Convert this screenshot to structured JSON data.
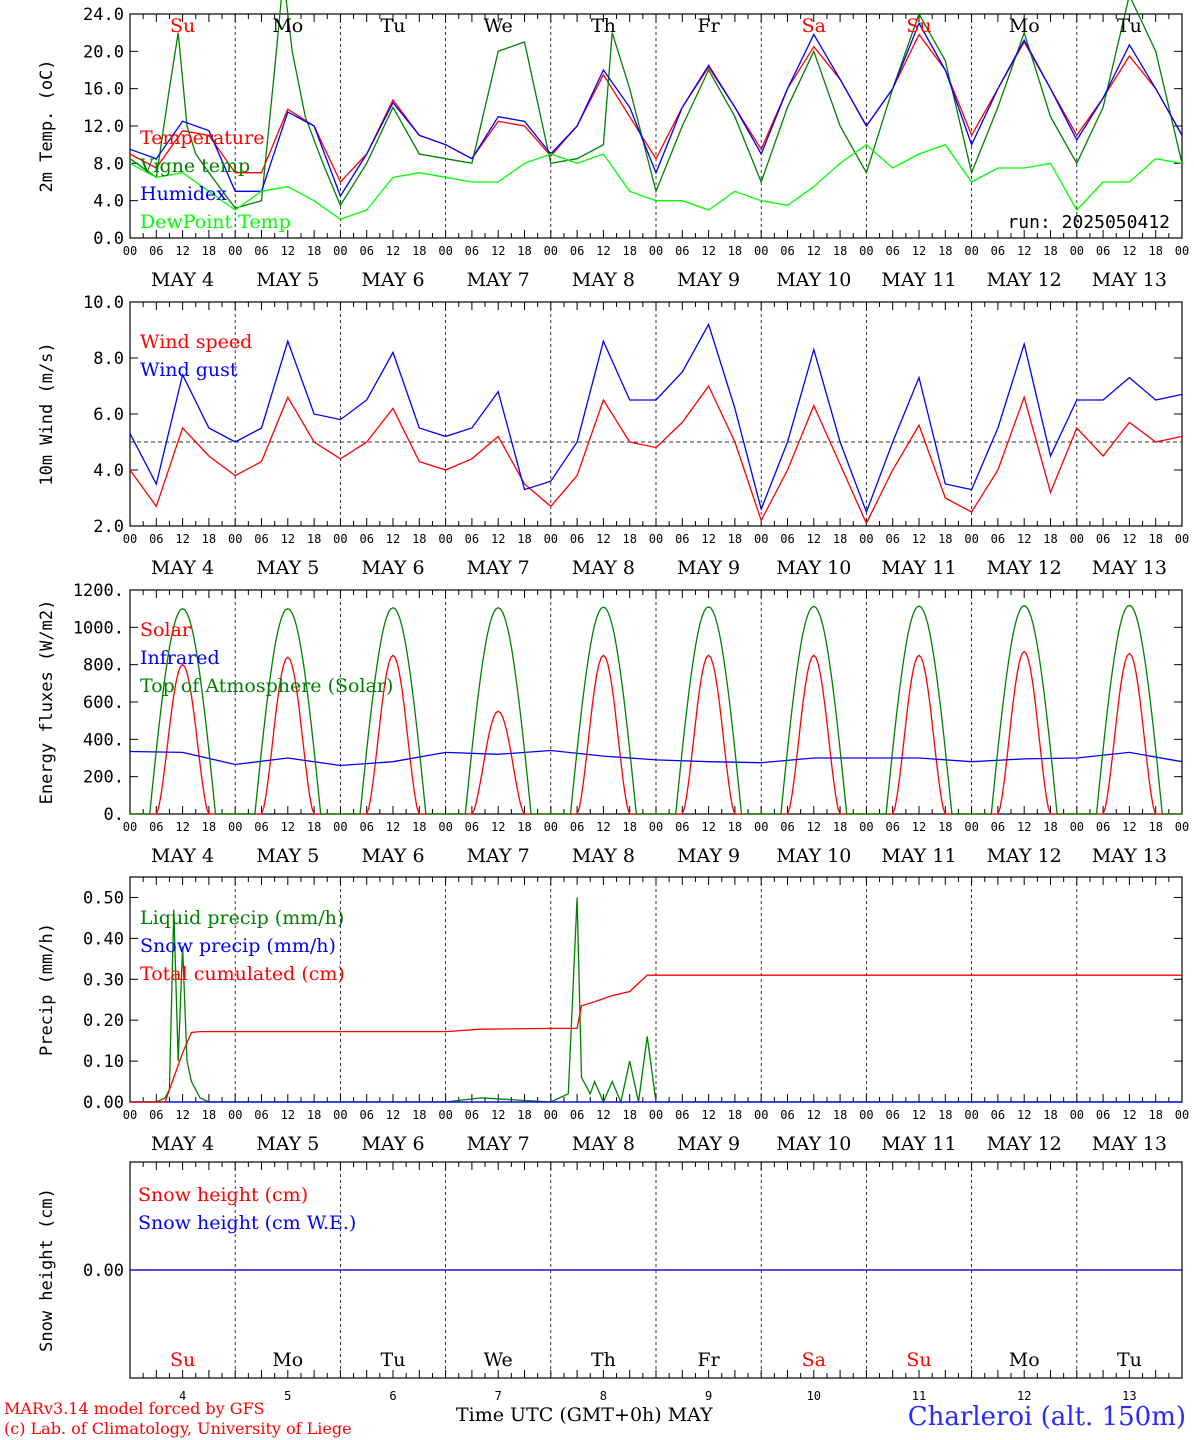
{
  "footer": {
    "model": "MARv3.14 model forced by GFS",
    "copyright": "(c) Lab. of Climatology, University of Liege",
    "xlabel": "Time UTC (GMT+0h) MAY",
    "station": "Charleroi (alt. 150m)"
  },
  "time_axis": {
    "hour_ticks": [
      "00",
      "06",
      "12",
      "18"
    ],
    "date_labels": [
      "MAY 4",
      "MAY 5",
      "MAY 6",
      "MAY 7",
      "MAY 8",
      "MAY 9",
      "MAY 10",
      "MAY 11",
      "MAY 12",
      "MAY 13"
    ],
    "bottom_day_numbers": [
      "4",
      "5",
      "6",
      "7",
      "8",
      "9",
      "10",
      "11",
      "12",
      "13"
    ],
    "weekdays": [
      "Su",
      "Mo",
      "Tu",
      "We",
      "Th",
      "Fr",
      "Sa",
      "Su",
      "Mo",
      "Tu"
    ],
    "weekday_colors": [
      "#ff0000",
      "#000000",
      "#000000",
      "#000000",
      "#000000",
      "#000000",
      "#ff0000",
      "#ff0000",
      "#000000",
      "#000000"
    ]
  },
  "chart_data": [
    {
      "type": "line",
      "ylabel": "2m Temp. (oC)",
      "ylim": [
        0,
        24
      ],
      "yticks": [
        "0.0",
        "4.0",
        "8.0",
        "12.0",
        "16.0",
        "20.0",
        "24.0"
      ],
      "annotation": "run: 2025050412",
      "x_unit": "hours since MAY 4 00 UTC",
      "series": [
        {
          "name": "Temperature",
          "color": "#ff0000",
          "x": [
            0,
            6,
            12,
            18,
            24,
            30,
            36,
            42,
            48,
            54,
            60,
            66,
            72,
            78,
            84,
            90,
            96,
            102,
            108,
            114,
            120,
            126,
            132,
            138,
            144,
            150,
            156,
            162,
            168,
            174,
            180,
            186,
            192,
            198,
            204,
            210,
            216,
            222,
            228,
            234,
            240
          ],
          "values": [
            9,
            7.5,
            11.5,
            11,
            7,
            7,
            13.8,
            12,
            6,
            9,
            14.8,
            11,
            10,
            8.5,
            12.5,
            12,
            8.8,
            12,
            17.5,
            13,
            8.5,
            14,
            18.3,
            14,
            9.5,
            16,
            20.5,
            17,
            12,
            16,
            21.8,
            18,
            11,
            16,
            21,
            16,
            11,
            15,
            19.5,
            16,
            11
          ]
        },
        {
          "name": "Vigne temp",
          "color": "#008000",
          "x": [
            0,
            6,
            9,
            11,
            13,
            15,
            18,
            24,
            30,
            33,
            35,
            37,
            40,
            44,
            48,
            54,
            60,
            66,
            72,
            78,
            84,
            90,
            96,
            102,
            108,
            110,
            114,
            120,
            126,
            132,
            138,
            144,
            150,
            156,
            162,
            168,
            174,
            180,
            186,
            192,
            198,
            204,
            210,
            216,
            222,
            228,
            234,
            240
          ],
          "values": [
            8.5,
            6.5,
            16,
            22,
            12,
            9,
            7,
            3.2,
            4,
            18,
            28,
            20,
            13,
            8,
            3.5,
            8,
            14,
            9,
            8.5,
            8,
            20,
            21,
            8,
            8.5,
            10,
            22,
            16,
            5,
            12,
            18,
            13,
            6,
            14,
            20,
            12,
            7,
            16,
            24,
            19,
            7,
            14,
            22,
            13,
            8,
            14,
            26,
            20,
            8
          ]
        },
        {
          "name": "Humidex",
          "color": "#0000ff",
          "x": [
            0,
            6,
            12,
            18,
            24,
            30,
            36,
            42,
            48,
            54,
            60,
            66,
            72,
            78,
            84,
            90,
            96,
            102,
            108,
            114,
            120,
            126,
            132,
            138,
            144,
            150,
            156,
            162,
            168,
            174,
            180,
            186,
            192,
            198,
            204,
            210,
            216,
            222,
            228,
            234,
            240
          ],
          "values": [
            9.5,
            8.5,
            12.5,
            11.5,
            5,
            5,
            13.5,
            12,
            4.5,
            9,
            14.5,
            11,
            10,
            8.5,
            13,
            12.5,
            9,
            12,
            18,
            14,
            7,
            14,
            18.5,
            14,
            9,
            16,
            21.8,
            17,
            12,
            16,
            23,
            18,
            10,
            16,
            21.2,
            16,
            10.5,
            15,
            20.7,
            16,
            11
          ]
        },
        {
          "name": "DewPoint Temp",
          "color": "#00ff00",
          "x": [
            0,
            6,
            12,
            18,
            24,
            30,
            36,
            42,
            48,
            54,
            60,
            66,
            72,
            78,
            84,
            90,
            96,
            102,
            108,
            114,
            120,
            126,
            132,
            138,
            144,
            150,
            156,
            162,
            168,
            174,
            180,
            186,
            192,
            198,
            204,
            210,
            216,
            222,
            228,
            234,
            240
          ],
          "values": [
            8,
            6.5,
            7,
            5,
            3,
            5,
            5.5,
            4,
            2,
            3,
            6.5,
            7,
            6.5,
            6,
            6,
            8,
            9,
            8,
            9,
            5,
            4,
            4,
            3,
            5,
            4,
            3.5,
            5.5,
            8,
            10,
            7.5,
            9,
            10,
            6,
            7.5,
            7.5,
            8,
            3,
            6,
            6,
            8.5,
            8
          ]
        }
      ]
    },
    {
      "type": "line",
      "ylabel": "10m Wind (m/s)",
      "ylim": [
        2,
        10
      ],
      "yticks": [
        "2.0",
        "4.0",
        "6.0",
        "8.0",
        "10.0"
      ],
      "reference_line": 5,
      "x_unit": "hours since MAY 4 00 UTC",
      "series": [
        {
          "name": "Wind speed",
          "color": "#ff0000",
          "x": [
            0,
            6,
            12,
            18,
            24,
            30,
            36,
            42,
            48,
            54,
            60,
            66,
            72,
            78,
            84,
            90,
            96,
            102,
            108,
            114,
            120,
            126,
            132,
            138,
            144,
            150,
            156,
            162,
            168,
            174,
            180,
            186,
            192,
            198,
            204,
            210,
            216,
            222,
            228,
            234,
            240
          ],
          "values": [
            4,
            2.7,
            5.5,
            4.5,
            3.8,
            4.3,
            6.6,
            5,
            4.4,
            5,
            6.2,
            4.3,
            4,
            4.4,
            5.2,
            3.5,
            2.7,
            3.8,
            6.5,
            5,
            4.8,
            5.7,
            7,
            5,
            2.2,
            4,
            6.3,
            4.2,
            2.1,
            4,
            5.6,
            3,
            2.5,
            4,
            6.6,
            3.2,
            5.5,
            4.5,
            5.7,
            5,
            5.2
          ]
        },
        {
          "name": "Wind gust",
          "color": "#0000ff",
          "x": [
            0,
            6,
            12,
            18,
            24,
            30,
            36,
            42,
            48,
            54,
            60,
            66,
            72,
            78,
            84,
            90,
            96,
            102,
            108,
            114,
            120,
            126,
            132,
            138,
            144,
            150,
            156,
            162,
            168,
            174,
            180,
            186,
            192,
            198,
            204,
            210,
            216,
            222,
            228,
            234,
            240
          ],
          "values": [
            5.3,
            3.5,
            7.4,
            5.5,
            5,
            5.5,
            8.6,
            6,
            5.8,
            6.5,
            8.2,
            5.5,
            5.2,
            5.5,
            6.8,
            3.3,
            3.6,
            5,
            8.6,
            6.5,
            6.5,
            7.5,
            9.2,
            6.2,
            2.6,
            5,
            8.3,
            5,
            2.5,
            5,
            7.3,
            3.5,
            3.3,
            5.5,
            8.5,
            4.5,
            6.5,
            6.5,
            7.3,
            6.5,
            6.7
          ]
        }
      ]
    },
    {
      "type": "line",
      "ylabel": "Energy fluxes (W/m2)",
      "ylim": [
        0,
        1200
      ],
      "yticks": [
        "0.",
        "200.",
        "400.",
        "600.",
        "800.",
        "1000.",
        "1200."
      ],
      "x_unit": "hours since MAY 4 00 UTC",
      "series": [
        {
          "name": "Solar",
          "color": "#ff0000",
          "daily_peak": [
            800,
            840,
            850,
            550,
            850,
            850,
            850,
            850,
            870,
            860
          ]
        },
        {
          "name": "Infrared",
          "color": "#0000ff",
          "x": [
            0,
            12,
            24,
            36,
            48,
            60,
            72,
            84,
            96,
            108,
            120,
            132,
            144,
            156,
            168,
            180,
            192,
            204,
            216,
            228,
            240
          ],
          "values": [
            335,
            330,
            265,
            300,
            260,
            280,
            330,
            320,
            340,
            310,
            290,
            280,
            275,
            300,
            300,
            300,
            280,
            295,
            300,
            330,
            280
          ]
        },
        {
          "name": "Top of Atmosphere (Solar)",
          "color": "#008000",
          "daily_peak": [
            1100,
            1100,
            1105,
            1105,
            1108,
            1110,
            1112,
            1114,
            1116,
            1118
          ]
        }
      ]
    },
    {
      "type": "line",
      "ylabel": "Precip (mm/h)",
      "ylim": [
        0,
        0.55
      ],
      "yticks": [
        "0.00",
        "0.10",
        "0.20",
        "0.30",
        "0.40",
        "0.50"
      ],
      "x_unit": "hours since MAY 4 00 UTC",
      "series": [
        {
          "name": "Liquid precip (mm/h)",
          "color": "#008000",
          "x": [
            0,
            6,
            8,
            9,
            10,
            11,
            12,
            13,
            14,
            16,
            18,
            24,
            72,
            80,
            96,
            100,
            102,
            103,
            104,
            105,
            106,
            108,
            110,
            112,
            114,
            116,
            118,
            120,
            122,
            126,
            240
          ],
          "values": [
            0,
            0,
            0.01,
            0.03,
            0.47,
            0.1,
            0.38,
            0.1,
            0.05,
            0.01,
            0,
            0,
            0,
            0.01,
            0,
            0.02,
            0.5,
            0.06,
            0.04,
            0.02,
            0.05,
            0,
            0.05,
            0,
            0.1,
            0,
            0.16,
            0,
            0,
            0,
            0
          ]
        },
        {
          "name": "Snow precip (mm/h)",
          "color": "#0000ff",
          "x": [
            0,
            240
          ],
          "values": [
            0,
            0
          ]
        },
        {
          "name": "Total cumulated (cm)",
          "color": "#ff0000",
          "x": [
            0,
            8,
            10,
            12,
            14,
            16,
            24,
            72,
            80,
            96,
            98,
            102,
            103,
            106,
            110,
            114,
            118,
            240
          ],
          "values": [
            0,
            0,
            0.06,
            0.12,
            0.17,
            0.172,
            0.172,
            0.172,
            0.178,
            0.18,
            0.18,
            0.18,
            0.235,
            0.245,
            0.26,
            0.27,
            0.31,
            0.31
          ]
        }
      ]
    },
    {
      "type": "line",
      "ylabel": "Snow height (cm)",
      "yticks": [
        "0.00"
      ],
      "x_unit": "hours since MAY 4 00 UTC",
      "series": [
        {
          "name": "Snow height (cm)",
          "color": "#ff0000",
          "x": [
            0,
            240
          ],
          "values": [
            0,
            0
          ]
        },
        {
          "name": "Snow height (cm W.E.)",
          "color": "#0000ff",
          "x": [
            0,
            240
          ],
          "values": [
            0,
            0
          ]
        }
      ]
    }
  ]
}
